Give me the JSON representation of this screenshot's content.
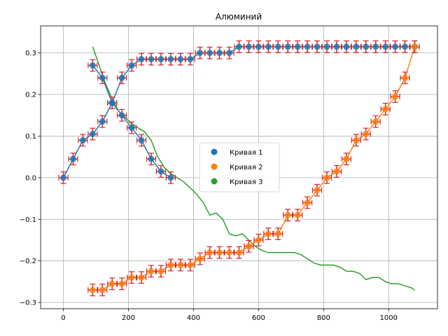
{
  "chart_data": {
    "type": "scatter",
    "title": "Алюминий",
    "xlabel": "",
    "ylabel": "",
    "xlim": [
      -70,
      1150
    ],
    "ylim": [
      -0.315,
      0.365
    ],
    "xticks": [
      0,
      200,
      400,
      600,
      800,
      1000
    ],
    "yticks": [
      -0.3,
      -0.2,
      -0.1,
      0.0,
      0.1,
      0.2,
      0.3
    ],
    "xtick_labels": [
      "0",
      "200",
      "400",
      "600",
      "800",
      "1000"
    ],
    "ytick_labels": [
      "−0.3",
      "−0.2",
      "−0.1",
      "0.0",
      "0.1",
      "0.2",
      "0.3"
    ],
    "grid": true,
    "legend_position": "center",
    "errorbar": {
      "xerr": 14,
      "yerr": 0.014,
      "color": "#d62728"
    },
    "series": [
      {
        "name": "Кривая 1",
        "color": "#1f77b4",
        "x": [
          0,
          30,
          60,
          90,
          120,
          150,
          180,
          210,
          240,
          270,
          300,
          330,
          360,
          390,
          420,
          450,
          480,
          510,
          540,
          570,
          600,
          630,
          660,
          690,
          720,
          750,
          780,
          810,
          840,
          870,
          900,
          930,
          960,
          990,
          1020,
          1050,
          1080,
          90,
          120,
          150,
          180,
          210,
          240,
          270,
          300,
          330
        ],
        "y": [
          0.0,
          0.045,
          0.09,
          0.105,
          0.135,
          0.18,
          0.24,
          0.27,
          0.285,
          0.285,
          0.285,
          0.285,
          0.285,
          0.285,
          0.3,
          0.3,
          0.3,
          0.3,
          0.315,
          0.315,
          0.315,
          0.315,
          0.315,
          0.315,
          0.315,
          0.315,
          0.315,
          0.315,
          0.315,
          0.315,
          0.315,
          0.315,
          0.315,
          0.315,
          0.315,
          0.315,
          0.315,
          0.27,
          0.24,
          0.18,
          0.15,
          0.12,
          0.09,
          0.045,
          0.015,
          0.0
        ]
      },
      {
        "name": "Кривая 2",
        "color": "#ff7f0e",
        "x": [
          90,
          120,
          150,
          180,
          210,
          240,
          270,
          300,
          330,
          360,
          390,
          420,
          450,
          480,
          510,
          540,
          570,
          600,
          630,
          660,
          690,
          720,
          750,
          780,
          810,
          840,
          870,
          900,
          930,
          960,
          990,
          1020,
          1050,
          1080
        ],
        "y": [
          -0.27,
          -0.27,
          -0.255,
          -0.255,
          -0.24,
          -0.24,
          -0.225,
          -0.225,
          -0.21,
          -0.21,
          -0.21,
          -0.195,
          -0.18,
          -0.18,
          -0.18,
          -0.18,
          -0.165,
          -0.15,
          -0.135,
          -0.135,
          -0.09,
          -0.09,
          -0.06,
          -0.03,
          0.0,
          0.015,
          0.045,
          0.09,
          0.105,
          0.135,
          0.165,
          0.195,
          0.24,
          0.315
        ]
      },
      {
        "name": "Кривая 3",
        "color": "#2ca02c",
        "x": [
          90,
          110,
          130,
          150,
          170,
          190,
          210,
          230,
          250,
          270,
          290,
          310,
          330,
          350,
          370,
          390,
          410,
          430,
          450,
          470,
          490,
          510,
          530,
          550,
          570,
          590,
          610,
          630,
          650,
          670,
          690,
          710,
          730,
          750,
          770,
          790,
          810,
          830,
          850,
          870,
          890,
          910,
          930,
          950,
          970,
          990,
          1010,
          1030,
          1050,
          1070,
          1080
        ],
        "y": [
          0.315,
          0.27,
          0.225,
          0.19,
          0.16,
          0.145,
          0.13,
          0.12,
          0.11,
          0.09,
          0.05,
          0.025,
          0.01,
          0.0,
          -0.01,
          -0.025,
          -0.04,
          -0.06,
          -0.09,
          -0.085,
          -0.1,
          -0.135,
          -0.14,
          -0.135,
          -0.15,
          -0.165,
          -0.175,
          -0.18,
          -0.18,
          -0.18,
          -0.18,
          -0.18,
          -0.185,
          -0.195,
          -0.205,
          -0.21,
          -0.21,
          -0.21,
          -0.215,
          -0.225,
          -0.225,
          -0.23,
          -0.245,
          -0.24,
          -0.24,
          -0.25,
          -0.255,
          -0.255,
          -0.26,
          -0.265,
          -0.27
        ]
      }
    ]
  }
}
